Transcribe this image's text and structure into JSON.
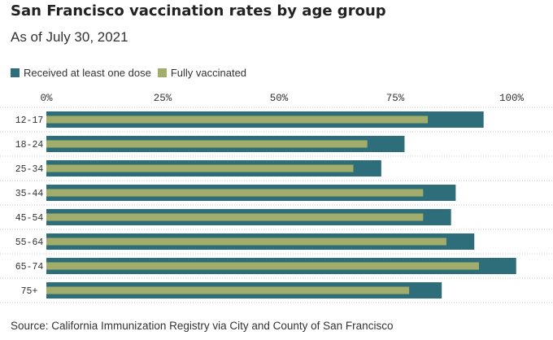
{
  "title": "San Francisco vaccination rates by age group",
  "subtitle": "As of July 30, 2021",
  "legend": {
    "items": [
      {
        "label": "Received at least one dose",
        "color": "#2e6e7a"
      },
      {
        "label": "Fully vaccinated",
        "color": "#a3ad6b"
      }
    ]
  },
  "source": "Source: California Immunization Registry via City and County of San Francisco",
  "chart_data": {
    "type": "bar",
    "orientation": "horizontal",
    "categories": [
      "12-17",
      "18-24",
      "25-34",
      "35-44",
      "45-54",
      "55-64",
      "65-74",
      "75+"
    ],
    "series": [
      {
        "name": "Received at least one dose",
        "color": "#2e6e7a",
        "values": [
          94,
          77,
          72,
          88,
          87,
          92,
          101,
          85
        ]
      },
      {
        "name": "Fully vaccinated",
        "color": "#a3ad6b",
        "values": [
          82,
          69,
          66,
          81,
          81,
          86,
          93,
          78
        ]
      }
    ],
    "xlim": [
      0,
      100
    ],
    "xticks": [
      0,
      25,
      50,
      75,
      100
    ],
    "xtick_labels": [
      "0%",
      "25%",
      "50%",
      "75%",
      "100%"
    ],
    "grid": true,
    "legend_position": "top-left"
  }
}
